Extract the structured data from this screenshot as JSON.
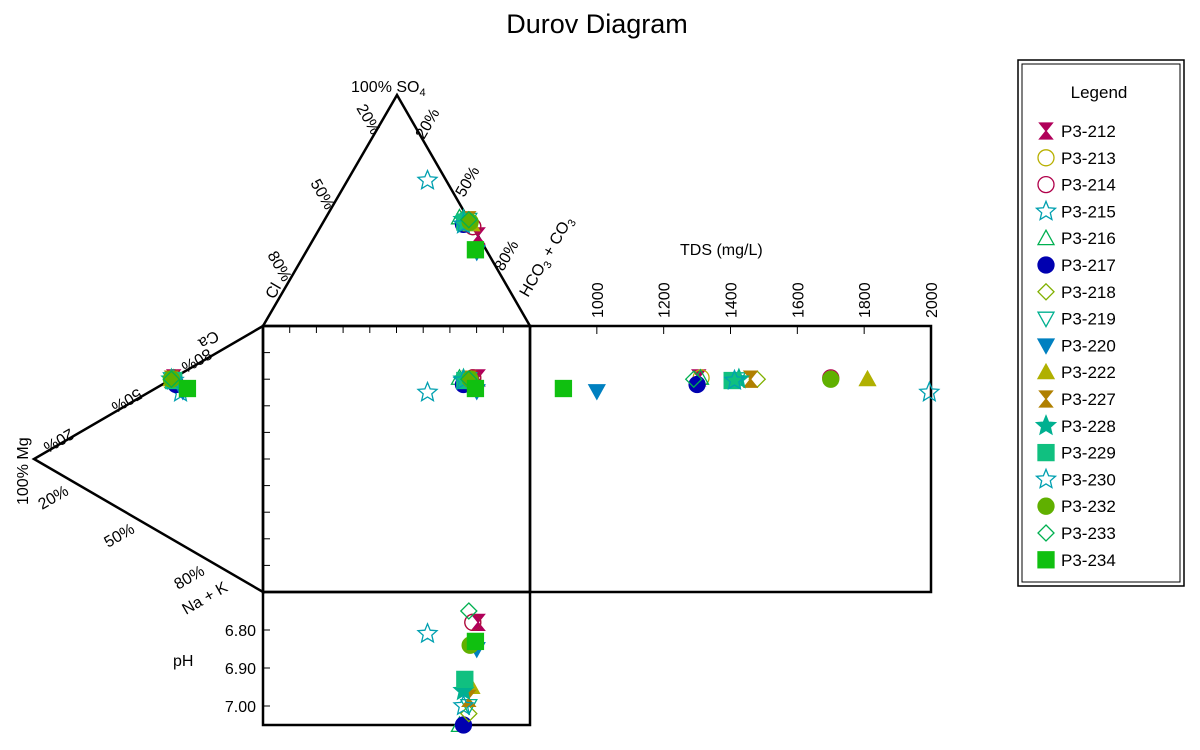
{
  "chart_data": {
    "type": "scatter",
    "title": "Durov Diagram",
    "diagram": "durov",
    "anion_triangle": {
      "apex_label": "100% SO",
      "apex_sub": "4",
      "left_label": "Cl",
      "right_label": "HCO",
      "right_sub1": "3",
      "right_mid": " + CO",
      "right_sub2": "3",
      "left_ticks": [
        "20%",
        "50%",
        "80%"
      ],
      "right_ticks": [
        "20%",
        "50%",
        "80%"
      ]
    },
    "cation_triangle": {
      "apex_label": "100% Mg",
      "top_label": "Ca",
      "bottom_label": "Na + K",
      "upper_ticks": [
        "80%",
        "50%",
        "20%"
      ],
      "lower_ticks": [
        "20%",
        "50%",
        "80%"
      ]
    },
    "tds_axis": {
      "label": "TDS (mg/L)",
      "range": [
        800,
        2000
      ],
      "ticks": [
        "1000",
        "1200",
        "1400",
        "1600",
        "1800",
        "2000"
      ],
      "tick_values": [
        1000,
        1200,
        1400,
        1600,
        1800,
        2000
      ]
    },
    "ph_axis": {
      "label": "pH",
      "range": [
        6.7,
        7.05
      ],
      "ticks": [
        "6.80",
        "6.90",
        "7.00"
      ],
      "tick_values": [
        6.8,
        6.9,
        7.0
      ]
    },
    "legend": {
      "title": "Legend",
      "position": "right"
    },
    "series": [
      {
        "name": "P3-212",
        "color": "#b0005a",
        "marker": "hourglass",
        "filled": true,
        "so4": 39,
        "cl": 0,
        "hco3": 61,
        "mg": 39,
        "na": 0,
        "ca": 61,
        "tds": 1305,
        "ph": 6.78
      },
      {
        "name": "P3-213",
        "color": "#b8b000",
        "marker": "circle",
        "filled": false,
        "so4": 43,
        "cl": 0,
        "hco3": 57,
        "mg": 39,
        "na": 0,
        "ca": 61,
        "tds": 1312,
        "ph": 6.78
      },
      {
        "name": "P3-214",
        "color": "#b0004a",
        "marker": "circle",
        "filled": false,
        "so4": 43,
        "cl": 0,
        "hco3": 57,
        "mg": 39,
        "na": 0,
        "ca": 61,
        "tds": 1700,
        "ph": 6.78
      },
      {
        "name": "P3-215",
        "color": "#00a0b0",
        "marker": "star",
        "filled": false,
        "so4": 63,
        "cl": 7,
        "hco3": 30,
        "mg": 36,
        "na": 7,
        "ca": 57,
        "tds": 1995,
        "ph": 6.81
      },
      {
        "name": "P3-216",
        "color": "#00b050",
        "marker": "triangle",
        "filled": false,
        "so4": 47,
        "cl": 3,
        "hco3": 50,
        "mg": 39,
        "na": 0,
        "ca": 61,
        "tds": 1310,
        "ph": 7.05
      },
      {
        "name": "P3-217",
        "color": "#0000b0",
        "marker": "circle",
        "filled": true,
        "so4": 44,
        "cl": 3,
        "hco3": 53,
        "mg": 38,
        "na": 3,
        "ca": 59,
        "tds": 1300,
        "ph": 7.05
      },
      {
        "name": "P3-218",
        "color": "#80b000",
        "marker": "diamond",
        "filled": false,
        "so4": 46,
        "cl": 0,
        "hco3": 54,
        "mg": 40,
        "na": 0,
        "ca": 60,
        "tds": 1480,
        "ph": 7.02
      },
      {
        "name": "P3-219",
        "color": "#00b090",
        "marker": "triangle-down",
        "filled": false,
        "so4": 46,
        "cl": 0,
        "hco3": 54,
        "mg": 40,
        "na": 0,
        "ca": 60,
        "tds": 1420,
        "ph": 7.0
      },
      {
        "name": "P3-220",
        "color": "#0080c0",
        "marker": "triangle-down",
        "filled": true,
        "so4": 32,
        "cl": 4,
        "hco3": 64,
        "mg": 35,
        "na": 7,
        "ca": 58,
        "tds": 1000,
        "ph": 6.85
      },
      {
        "name": "P3-222",
        "color": "#b0b000",
        "marker": "triangle",
        "filled": true,
        "so4": 44,
        "cl": 0,
        "hco3": 56,
        "mg": 40,
        "na": 0,
        "ca": 60,
        "tds": 1810,
        "ph": 6.95
      },
      {
        "name": "P3-227",
        "color": "#b08000",
        "marker": "hourglass",
        "filled": true,
        "so4": 46,
        "cl": 0,
        "hco3": 54,
        "mg": 40,
        "na": 0,
        "ca": 60,
        "tds": 1460,
        "ph": 6.98
      },
      {
        "name": "P3-228",
        "color": "#00b090",
        "marker": "star",
        "filled": true,
        "so4": 46,
        "cl": 2,
        "hco3": 52,
        "mg": 40,
        "na": 0,
        "ca": 60,
        "tds": 1425,
        "ph": 6.96
      },
      {
        "name": "P3-229",
        "color": "#10c080",
        "marker": "square",
        "filled": true,
        "so4": 45,
        "cl": 2,
        "hco3": 53,
        "mg": 39,
        "na": 1,
        "ca": 60,
        "tds": 1405,
        "ph": 6.93
      },
      {
        "name": "P3-230",
        "color": "#00a0b0",
        "marker": "star",
        "filled": false,
        "so4": 44,
        "cl": 3,
        "hco3": 53,
        "mg": 39,
        "na": 1,
        "ca": 60,
        "tds": 1412,
        "ph": 7.0
      },
      {
        "name": "P3-232",
        "color": "#60b000",
        "marker": "circle",
        "filled": true,
        "so4": 45,
        "cl": 0,
        "hco3": 55,
        "mg": 40,
        "na": 0,
        "ca": 60,
        "tds": 1700,
        "ph": 6.84
      },
      {
        "name": "P3-233",
        "color": "#00b050",
        "marker": "diamond",
        "filled": false,
        "so4": 46,
        "cl": 0,
        "hco3": 54,
        "mg": 40,
        "na": 0,
        "ca": 60,
        "tds": 1290,
        "ph": 6.75
      },
      {
        "name": "P3-234",
        "color": "#10c010",
        "marker": "square",
        "filled": true,
        "so4": 33,
        "cl": 4,
        "hco3": 63,
        "mg": 33,
        "na": 7,
        "ca": 60,
        "tds": 900,
        "ph": 6.83
      }
    ]
  }
}
